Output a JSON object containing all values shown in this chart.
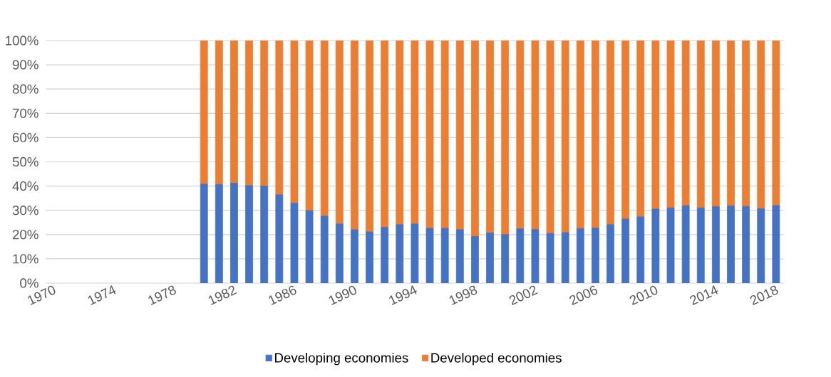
{
  "chart_data": {
    "type": "bar",
    "stacked": true,
    "categories": [
      "1970",
      null,
      null,
      null,
      "1974",
      null,
      null,
      null,
      "1978",
      null,
      null,
      null,
      "1982",
      null,
      null,
      null,
      "1986",
      null,
      null,
      null,
      "1990",
      null,
      null,
      null,
      "1994",
      null,
      null,
      null,
      "1998",
      null,
      null,
      null,
      "2002",
      null,
      null,
      null,
      "2006",
      null,
      null,
      null,
      "2010",
      null,
      null,
      null,
      "2014",
      null,
      null,
      null,
      "2018"
    ],
    "series": [
      {
        "name": "Developing economies",
        "color": "#4472c4",
        "values": [
          0,
          0,
          0,
          0,
          0,
          0,
          0,
          0,
          0,
          0,
          40.8,
          40.7,
          41.2,
          40.2,
          40,
          36.4,
          33,
          29.9,
          27.6,
          24.4,
          22,
          21.1,
          23,
          24.1,
          24.4,
          22.6,
          22.6,
          22,
          19.2,
          20.7,
          20,
          22.4,
          22.1,
          20.5,
          20.8,
          22.5,
          22.7,
          24.1,
          26.4,
          27.3,
          30.5,
          31,
          31.9,
          31,
          31.5,
          31.8,
          31.6,
          30.7,
          32
        ]
      },
      {
        "name": "Developed economies",
        "color": "#ed7d31",
        "values": [
          0,
          0,
          0,
          0,
          0,
          0,
          0,
          0,
          0,
          0,
          59.2,
          59.3,
          58.8,
          59.8,
          60,
          63.6,
          67,
          70.1,
          72.4,
          75.6,
          78,
          78.9,
          77,
          75.9,
          75.6,
          77.4,
          77.4,
          78,
          80.8,
          79.3,
          80,
          77.6,
          77.9,
          79.5,
          79.2,
          77.5,
          77.3,
          75.9,
          73.6,
          72.7,
          69.5,
          69,
          68.1,
          69,
          68.5,
          68.2,
          68.4,
          69.3,
          68
        ]
      }
    ],
    "ylim": [
      0,
      100
    ],
    "yticks": [
      {
        "value": 0,
        "label": "0%"
      },
      {
        "value": 10,
        "label": "10%"
      },
      {
        "value": 20,
        "label": "20%"
      },
      {
        "value": 30,
        "label": "30%"
      },
      {
        "value": 40,
        "label": "40%"
      },
      {
        "value": 50,
        "label": "50%"
      },
      {
        "value": 60,
        "label": "60%"
      },
      {
        "value": 70,
        "label": "70%"
      },
      {
        "value": 80,
        "label": "80%"
      },
      {
        "value": 90,
        "label": "90%"
      },
      {
        "value": 100,
        "label": "100%"
      }
    ],
    "grid": "y",
    "legend": "bottom"
  }
}
